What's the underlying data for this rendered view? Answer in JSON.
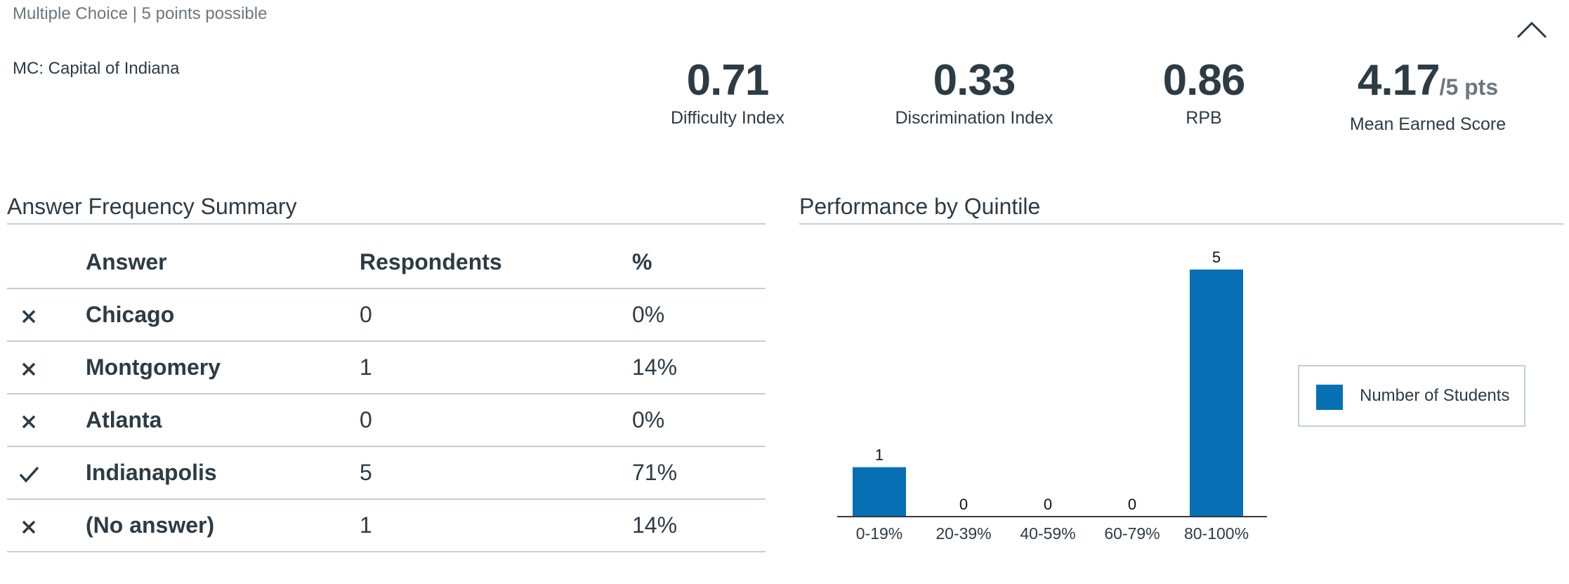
{
  "header": {
    "question_type": "Multiple Choice | 5 points possible",
    "question_title": "MC: Capital of Indiana"
  },
  "stats": [
    {
      "value": "0.71",
      "unit": "",
      "label": "Difficulty Index"
    },
    {
      "value": "0.33",
      "unit": "",
      "label": "Discrimination Index"
    },
    {
      "value": "0.86",
      "unit": "",
      "label": "RPB"
    },
    {
      "value": "4.17",
      "unit": "/5 pts",
      "label": "Mean Earned Score"
    }
  ],
  "frequency": {
    "title": "Answer Frequency Summary",
    "columns": [
      "Answer",
      "Respondents",
      "%"
    ],
    "rows": [
      {
        "mark": "x",
        "answer": "Chicago",
        "respondents": "0",
        "percent": "0%"
      },
      {
        "mark": "x",
        "answer": "Montgomery",
        "respondents": "1",
        "percent": "14%"
      },
      {
        "mark": "x",
        "answer": "Atlanta",
        "respondents": "0",
        "percent": "0%"
      },
      {
        "mark": "check",
        "answer": "Indianapolis",
        "respondents": "5",
        "percent": "71%"
      },
      {
        "mark": "x",
        "answer": "(No answer)",
        "respondents": "1",
        "percent": "14%"
      }
    ]
  },
  "performance": {
    "title": "Performance by Quintile",
    "legend_label": "Number of Students",
    "bar_color": "#0770b4"
  },
  "chart_data": {
    "type": "bar",
    "categories": [
      "0-19%",
      "20-39%",
      "40-59%",
      "60-79%",
      "80-100%"
    ],
    "series": [
      {
        "name": "Number of Students",
        "values": [
          1,
          0,
          0,
          0,
          5
        ]
      }
    ],
    "ylim": [
      0,
      5
    ],
    "legend": "right"
  }
}
